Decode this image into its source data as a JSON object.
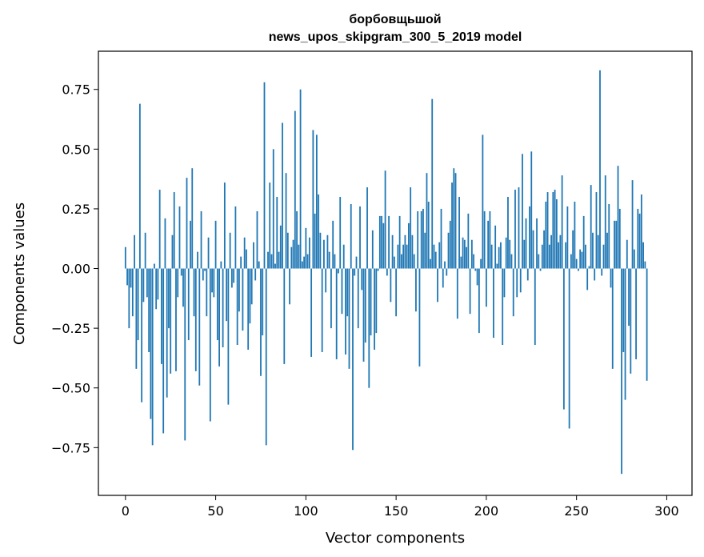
{
  "chart_data": {
    "type": "bar",
    "title": "борбовщьшой",
    "subtitle": "news_upos_skipgram_300_5_2019 model",
    "xlabel": "Vector components",
    "ylabel": "Components values",
    "xlim": [
      -15,
      314
    ],
    "ylim": [
      -0.95,
      0.91
    ],
    "x_ticks": [
      0,
      50,
      100,
      150,
      200,
      250,
      300
    ],
    "x_tick_labels": [
      "0",
      "50",
      "100",
      "150",
      "200",
      "250",
      "300"
    ],
    "y_ticks": [
      0.75,
      0.5,
      0.25,
      0.0,
      -0.25,
      -0.5,
      -0.75
    ],
    "y_tick_labels": [
      "0.75",
      "0.50",
      "0.25",
      "0.00",
      "−0.25",
      "−0.50",
      "−0.75"
    ],
    "bar_color": "#1f77b4",
    "grid": false,
    "values": [
      0.09,
      -0.07,
      -0.25,
      -0.08,
      -0.2,
      0.14,
      -0.42,
      -0.3,
      0.69,
      -0.56,
      -0.14,
      0.15,
      -0.12,
      -0.35,
      -0.63,
      -0.74,
      0.02,
      -0.17,
      -0.13,
      0.33,
      -0.4,
      -0.69,
      0.21,
      -0.54,
      -0.25,
      -0.44,
      0.14,
      0.32,
      -0.43,
      -0.12,
      0.26,
      -0.03,
      -0.16,
      -0.72,
      0.38,
      -0.3,
      0.2,
      0.42,
      -0.2,
      -0.43,
      0.07,
      -0.49,
      0.24,
      -0.05,
      -0.01,
      -0.2,
      0.13,
      -0.64,
      -0.1,
      -0.12,
      0.2,
      -0.3,
      -0.41,
      0.03,
      -0.33,
      0.36,
      -0.22,
      -0.57,
      0.15,
      -0.08,
      -0.06,
      0.26,
      -0.32,
      -0.18,
      0.05,
      -0.26,
      0.13,
      0.08,
      -0.34,
      -0.23,
      -0.15,
      0.11,
      -0.05,
      0.24,
      0.03,
      -0.45,
      -0.28,
      0.78,
      -0.74,
      0.07,
      0.36,
      0.06,
      0.5,
      0.02,
      0.3,
      0.07,
      0.18,
      0.61,
      -0.4,
      0.4,
      0.15,
      -0.15,
      0.09,
      0.12,
      0.66,
      0.24,
      0.1,
      0.75,
      0.03,
      0.05,
      0.17,
      0.06,
      0.13,
      -0.37,
      0.58,
      0.23,
      0.56,
      0.31,
      0.15,
      -0.35,
      0.12,
      -0.1,
      0.14,
      0.07,
      -0.25,
      0.2,
      0.06,
      -0.38,
      -0.02,
      0.3,
      -0.19,
      0.1,
      -0.36,
      -0.2,
      -0.42,
      0.27,
      -0.76,
      -0.03,
      0.05,
      -0.25,
      0.26,
      -0.09,
      -0.39,
      -0.31,
      0.34,
      -0.5,
      -0.28,
      0.16,
      -0.34,
      -0.27,
      -0.01,
      0.22,
      0.22,
      0.19,
      0.41,
      -0.03,
      0.22,
      -0.14,
      0.14,
      0.05,
      -0.2,
      0.1,
      0.22,
      0.06,
      0.1,
      0.14,
      0.1,
      0.19,
      0.34,
      0.14,
      0.06,
      -0.18,
      0.24,
      -0.41,
      0.24,
      0.25,
      0.15,
      0.4,
      0.28,
      0.04,
      0.71,
      0.1,
      0.07,
      -0.14,
      0.11,
      0.25,
      -0.08,
      0.03,
      -0.03,
      0.15,
      0.2,
      0.36,
      0.42,
      0.4,
      -0.21,
      0.3,
      0.05,
      0.13,
      0.12,
      0.09,
      0.23,
      -0.19,
      0.12,
      0.06,
      -0.01,
      -0.07,
      -0.27,
      0.04,
      0.56,
      0.24,
      -0.16,
      0.2,
      0.24,
      0.1,
      -0.29,
      0.18,
      0.02,
      0.09,
      0.11,
      -0.32,
      -0.12,
      0.13,
      0.3,
      0.12,
      0.06,
      -0.2,
      0.33,
      -0.12,
      0.34,
      -0.1,
      0.48,
      0.12,
      0.21,
      -0.05,
      0.26,
      0.49,
      0.16,
      -0.32,
      0.21,
      0.06,
      -0.01,
      0.1,
      0.16,
      0.28,
      0.32,
      0.1,
      0.14,
      0.32,
      0.33,
      0.29,
      0.11,
      0.14,
      0.39,
      -0.59,
      0.11,
      0.26,
      -0.67,
      0.06,
      0.16,
      0.28,
      0.04,
      -0.01,
      0.08,
      0.07,
      0.22,
      0.1,
      -0.09,
      0.01,
      0.35,
      0.15,
      -0.05,
      0.32,
      0.14,
      0.83,
      -0.03,
      0.1,
      0.39,
      0.15,
      0.27,
      -0.08,
      -0.42,
      0.2,
      0.2,
      0.43,
      0.25,
      -0.86,
      -0.35,
      -0.55,
      0.12,
      -0.24,
      -0.44,
      0.37,
      0.08,
      -0.38,
      0.25,
      0.23,
      0.31,
      0.11,
      0.03,
      -0.47
    ]
  }
}
